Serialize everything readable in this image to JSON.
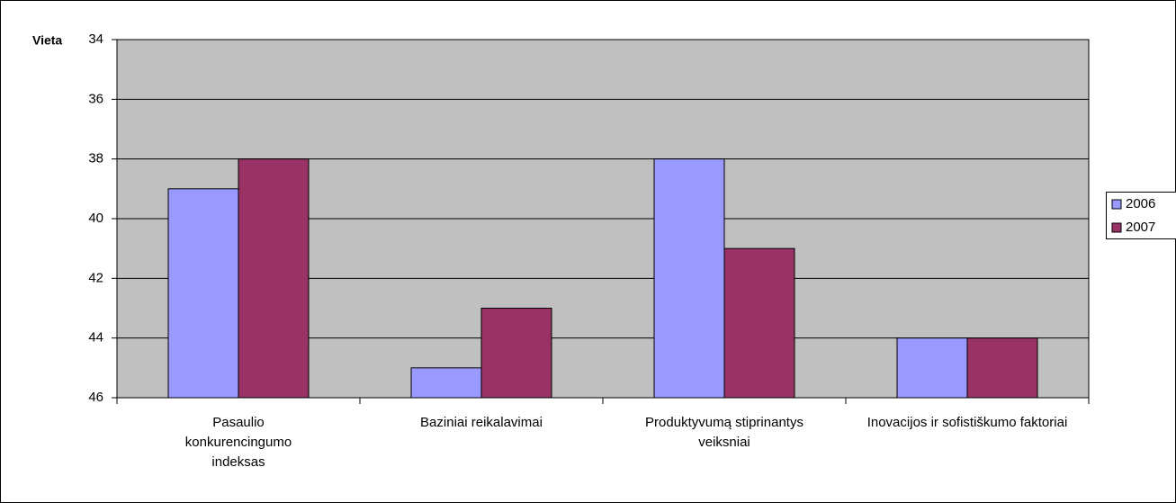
{
  "chart_data": {
    "type": "bar",
    "y_axis_label": "Vieta",
    "categories": [
      "Pasaulio konkurencingumo indeksas",
      "Baziniai reikalavimai",
      "Produktyvumą stiprinantys veiksniai",
      "Inovacijos ir sofistiškumo faktoriai"
    ],
    "series": [
      {
        "name": "2006",
        "color": "#9999ff",
        "values": [
          39,
          45,
          38,
          44
        ]
      },
      {
        "name": "2007",
        "color": "#993366",
        "values": [
          38,
          43,
          41,
          44
        ]
      }
    ],
    "ylim": [
      34,
      46
    ],
    "y_inverted": true,
    "yticks": [
      34,
      36,
      38,
      40,
      42,
      44,
      46
    ],
    "grid": true,
    "plot_background": "#c0c0c0",
    "legend": "right"
  }
}
